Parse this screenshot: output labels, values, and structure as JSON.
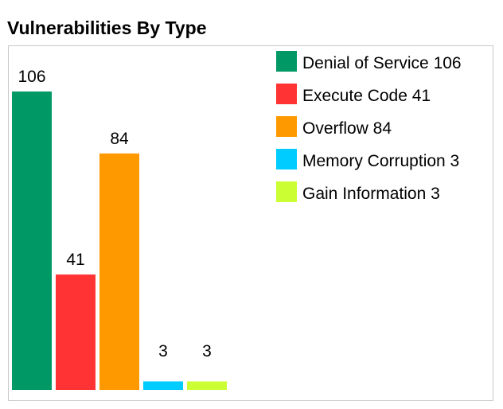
{
  "title": "Vulnerabilities By Type",
  "chart_data": {
    "type": "bar",
    "title": "Vulnerabilities By Type",
    "xlabel": "",
    "ylabel": "",
    "ylim": [
      0,
      106
    ],
    "grid": false,
    "legend_position": "top-right",
    "categories": [
      "Denial of Service",
      "Execute Code",
      "Overflow",
      "Memory Corruption",
      "Gain Information"
    ],
    "values": [
      106,
      41,
      84,
      3,
      3
    ],
    "colors": [
      "#009966",
      "#ff3333",
      "#ff9900",
      "#00ccff",
      "#ccff33"
    ],
    "data_labels": [
      "106",
      "41",
      "84",
      "3",
      "3"
    ],
    "legend": [
      {
        "label": "Denial of Service 106",
        "color": "#009966"
      },
      {
        "label": "Execute Code 41",
        "color": "#ff3333"
      },
      {
        "label": "Overflow 84",
        "color": "#ff9900"
      },
      {
        "label": "Memory Corruption 3",
        "color": "#00ccff"
      },
      {
        "label": "Gain Information 3",
        "color": "#ccff33"
      }
    ]
  }
}
